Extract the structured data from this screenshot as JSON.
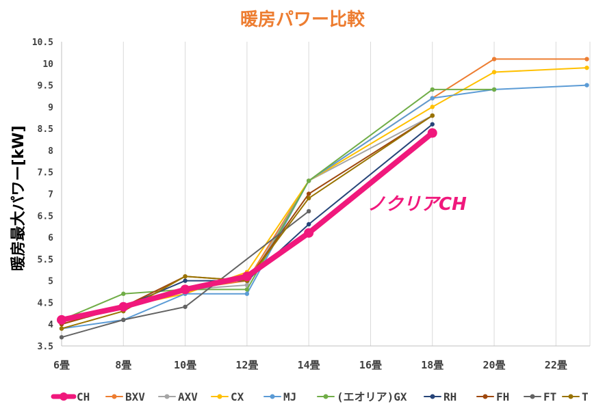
{
  "chart_data": {
    "type": "line",
    "title": "暖房パワー比較",
    "ylabel": "暖房最大パワー[kW]",
    "xlabel": "",
    "categories": [
      "6畳",
      "8畳",
      "10畳",
      "12畳",
      "14畳",
      "16畳",
      "18畳",
      "20畳",
      "22畳"
    ],
    "ylim": [
      3.5,
      10.5
    ],
    "yticks": [
      "3.5",
      "4",
      "4.5",
      "5",
      "5.5",
      "6",
      "6.5",
      "7",
      "7.5",
      "8",
      "8.5",
      "9",
      "9.5",
      "10",
      "10.5"
    ],
    "grid": "vertical",
    "legend_position": "bottom",
    "annotation": "ノクリアCH",
    "series": [
      {
        "name": "BXV",
        "color": "#ED7D31",
        "x": [
          6,
          8,
          10,
          12,
          14,
          18,
          20,
          23
        ],
        "values": [
          4.0,
          4.4,
          4.8,
          5.0,
          7.3,
          9.2,
          10.1,
          10.1
        ]
      },
      {
        "name": "AXV",
        "color": "#A5A5A5",
        "x": [
          6,
          8,
          10,
          12,
          14,
          18
        ],
        "values": [
          4.0,
          4.4,
          4.8,
          4.9,
          7.3,
          8.8
        ]
      },
      {
        "name": "CX",
        "color": "#FFC000",
        "x": [
          6,
          8,
          10,
          12,
          14,
          18,
          20,
          23
        ],
        "values": [
          4.0,
          4.4,
          4.7,
          5.2,
          7.3,
          9.0,
          9.8,
          9.9
        ]
      },
      {
        "name": "MJ",
        "color": "#5B9BD5",
        "x": [
          6,
          8,
          10,
          12,
          14,
          18,
          20,
          23
        ],
        "values": [
          3.9,
          4.1,
          4.7,
          4.7,
          7.3,
          9.2,
          9.4,
          9.5
        ]
      },
      {
        "name": "(エオリア)GX",
        "color": "#70AD47",
        "x": [
          6,
          8,
          10,
          12,
          14,
          18,
          20
        ],
        "values": [
          4.1,
          4.7,
          4.8,
          4.8,
          7.3,
          9.4,
          9.4
        ]
      },
      {
        "name": "RH",
        "color": "#264478",
        "x": [
          6,
          8,
          10,
          12,
          14,
          18
        ],
        "values": [
          4.1,
          4.4,
          5.0,
          5.0,
          6.3,
          8.6
        ]
      },
      {
        "name": "FH",
        "color": "#9E480E",
        "x": [
          6,
          8,
          10,
          12,
          14,
          18
        ],
        "values": [
          4.0,
          4.4,
          5.1,
          5.0,
          7.0,
          8.8
        ]
      },
      {
        "name": "FT",
        "color": "#636363",
        "x": [
          6,
          8,
          10,
          14
        ],
        "values": [
          3.7,
          4.1,
          4.4,
          6.6
        ]
      },
      {
        "name": "T",
        "color": "#997300",
        "x": [
          6,
          8,
          10,
          12,
          14,
          18
        ],
        "values": [
          3.9,
          4.3,
          5.1,
          5.0,
          6.9,
          8.8
        ]
      },
      {
        "name": "CH",
        "color": "#F0187C",
        "x": [
          6,
          8,
          10,
          12,
          14,
          18
        ],
        "values": [
          4.1,
          4.4,
          4.8,
          5.1,
          6.1,
          8.4
        ],
        "highlight": true
      }
    ],
    "legend_order": [
      "CH",
      "BXV",
      "AXV",
      "CX",
      "MJ",
      "(エオリア)GX",
      "RH",
      "FH",
      "FT",
      "T"
    ]
  }
}
